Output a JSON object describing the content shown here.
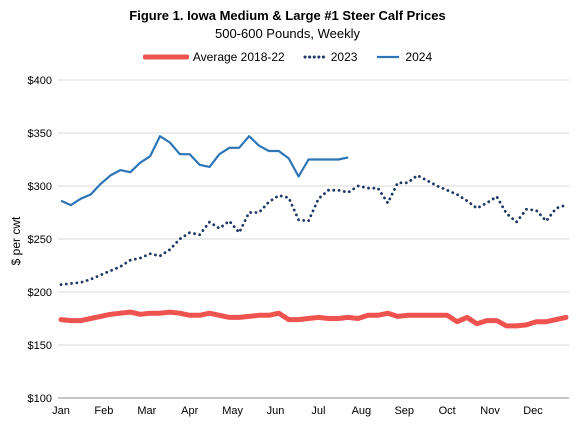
{
  "chart_data": {
    "type": "line",
    "title": "Figure 1. Iowa Medium & Large #1 Steer Calf Prices",
    "subtitle": "500-600 Pounds, Weekly",
    "ylabel": "$ per cwt",
    "xlabel": "",
    "ylim": [
      100,
      400
    ],
    "yticks": [
      "$100",
      "$150",
      "$200",
      "$250",
      "$300",
      "$350",
      "$400"
    ],
    "ytick_values": [
      100,
      150,
      200,
      250,
      300,
      350,
      400
    ],
    "x_categories": [
      "Jan",
      "Feb",
      "Mar",
      "Apr",
      "May",
      "Jun",
      "Jul",
      "Aug",
      "Sep",
      "Oct",
      "Nov",
      "Dec"
    ],
    "x_unit": "week of year (1-52)",
    "legend_position": "top",
    "grid": "horizontal",
    "series": [
      {
        "name": "Average 2018-22",
        "color": "#ef5350",
        "style": "solid-thick",
        "x": [
          1,
          2,
          3,
          4,
          5,
          6,
          7,
          8,
          9,
          10,
          11,
          12,
          13,
          14,
          15,
          16,
          17,
          18,
          19,
          20,
          21,
          22,
          23,
          24,
          25,
          26,
          27,
          28,
          29,
          30,
          31,
          32,
          33,
          34,
          35,
          36,
          37,
          38,
          39,
          40,
          41,
          42,
          43,
          44,
          45,
          46,
          47,
          48,
          49,
          50,
          51,
          52
        ],
        "values": [
          174,
          173,
          173,
          175,
          177,
          179,
          180,
          181,
          179,
          180,
          180,
          181,
          180,
          178,
          178,
          180,
          178,
          176,
          176,
          177,
          178,
          178,
          180,
          174,
          174,
          175,
          176,
          175,
          175,
          176,
          175,
          178,
          178,
          180,
          177,
          178,
          178,
          178,
          178,
          178,
          172,
          176,
          170,
          173,
          173,
          168,
          168,
          169,
          172,
          172,
          174,
          176
        ]
      },
      {
        "name": "2023",
        "color": "#1f3864",
        "style": "dotted",
        "x": [
          1,
          2,
          3,
          4,
          5,
          6,
          7,
          8,
          9,
          10,
          11,
          12,
          13,
          14,
          15,
          16,
          17,
          18,
          19,
          20,
          21,
          22,
          23,
          24,
          25,
          26,
          27,
          28,
          29,
          30,
          31,
          32,
          33,
          34,
          35,
          36,
          37,
          38,
          39,
          40,
          41,
          42,
          43,
          44,
          45,
          46,
          47,
          48,
          49,
          50,
          51,
          52
        ],
        "values": [
          207,
          208,
          209,
          212,
          216,
          220,
          224,
          230,
          232,
          236,
          234,
          240,
          250,
          256,
          254,
          266,
          260,
          267,
          256,
          275,
          275,
          285,
          291,
          289,
          268,
          267,
          288,
          296,
          296,
          294,
          300,
          298,
          298,
          284,
          303,
          303,
          310,
          305,
          300,
          296,
          292,
          286,
          279,
          284,
          290,
          274,
          266,
          278,
          277,
          267,
          279,
          282
        ]
      },
      {
        "name": "2024",
        "color": "#2e75b6",
        "style": "solid",
        "x": [
          1,
          2,
          3,
          4,
          5,
          6,
          7,
          8,
          9,
          10,
          11,
          12,
          13,
          14,
          15,
          16,
          17,
          18,
          19,
          20,
          21,
          22,
          23,
          24,
          25,
          26,
          27,
          28,
          29,
          30
        ],
        "values": [
          286,
          282,
          288,
          292,
          302,
          310,
          315,
          313,
          322,
          328,
          347,
          341,
          330,
          330,
          320,
          318,
          330,
          336,
          336,
          347,
          338,
          333,
          333,
          326,
          309,
          325,
          325,
          325,
          325,
          327
        ]
      }
    ]
  }
}
